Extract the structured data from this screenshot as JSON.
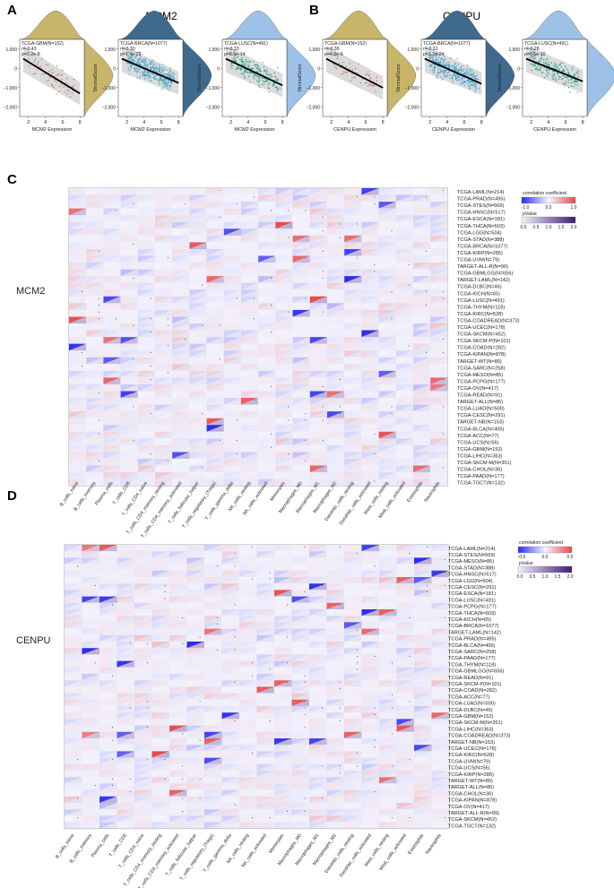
{
  "panel_letters": {
    "A": "A",
    "B": "B",
    "C": "C",
    "D": "D"
  },
  "gene_titles": {
    "A": "MCM2",
    "B": "CENPU"
  },
  "axis": {
    "ylabel": "StromalScore"
  },
  "scatter_ticks": {
    "x": [
      "2",
      "4",
      "6",
      "8"
    ],
    "y": [
      "1,000",
      "0",
      "−1,000",
      "−2,000"
    ]
  },
  "chart_data": [
    {
      "type": "scatter",
      "panel": "A",
      "gene": "MCM2",
      "cohort": "TCGA-GBM(N=152)",
      "r": "r=-0.43",
      "p": "p=2.2e-8",
      "xlabel": "MCM2 Expression",
      "ylabel": "StromalScore",
      "color": "#c96a5a",
      "density_color": "#c8b56a",
      "slope": -0.43
    },
    {
      "type": "scatter",
      "panel": "A",
      "gene": "MCM2",
      "cohort": "TCGA-BRCA(N=1077)",
      "r": "r=-0.30",
      "p": "p=1.4e-23",
      "xlabel": "MCM2 Expression",
      "ylabel": "StromalScore",
      "color": "#4aa3c8",
      "density_color": "#3f6a8e",
      "slope": -0.3
    },
    {
      "type": "scatter",
      "panel": "A",
      "gene": "MCM2",
      "cohort": "TCGA-LUSC(N=491)",
      "r": "r=-0.33",
      "p": "p=8.6e-14",
      "xlabel": "MCM2 Expression",
      "ylabel": "StromalScore",
      "color": "#2e9a8a",
      "density_color": "#9ec1e8",
      "slope": -0.33
    },
    {
      "type": "scatter",
      "panel": "B",
      "gene": "CENPU",
      "cohort": "TCGA-GBM(N=152)",
      "r": "r=-0.36",
      "p": "p=4.9e-6",
      "xlabel": "CENPU Expression",
      "ylabel": "StromalScore",
      "color": "#c96a5a",
      "density_color": "#c8b56a",
      "slope": -0.36
    },
    {
      "type": "scatter",
      "panel": "B",
      "gene": "CENPU",
      "cohort": "TCGA-BRCA(N=1077)",
      "r": "r=-0.31",
      "p": "p=1.2e-24",
      "xlabel": "CENPU Expression",
      "ylabel": "StromalScore",
      "color": "#4aa3c8",
      "density_color": "#3f6a8e",
      "slope": -0.31
    },
    {
      "type": "scatter",
      "panel": "B",
      "gene": "CENPU",
      "cohort": "TCGA-LUSC(N=491)",
      "r": "r=-0.28",
      "p": "p=6.5e-10",
      "xlabel": "CENPU Expression",
      "ylabel": "StromalScore",
      "color": "#2e9a8a",
      "density_color": "#9ec1e8",
      "slope": -0.28
    },
    {
      "type": "heatmap",
      "panel": "C",
      "gene": "MCM2",
      "columns": [
        "B_cells_naive",
        "B_cells_memory",
        "Plasma_cells",
        "T_cells_CD8",
        "T_cells_CD4_naive",
        "T_cells_CD4_memory_resting",
        "T_cells_CD4_memory_activated",
        "T_cells_follicular_helper",
        "T_cells_regulatory_(Tregs)",
        "T_cells_gamma_delta",
        "NK_cells_resting",
        "NK_cells_activated",
        "Monocytes",
        "Macrophages_M0",
        "Macrophages_M1",
        "Macrophages_M2",
        "Dendritic_cells_resting",
        "Dendritic_cells_activated",
        "Mast_cells_resting",
        "Mast_cells_activated",
        "Eosinophils",
        "Neutrophils"
      ],
      "rows": [
        "TCGA-LAML(N=214)",
        "TCGA-PRAD(N=495)",
        "TCGA-STES(N=569)",
        "TCGA-HNSC(N=517)",
        "TCGA-ESCA(N=181)",
        "TCGA-THCA(N=503)",
        "TCGA-LGG(N=504)",
        "TCGA-STAD(N=388)",
        "TCGA-BRCA(N=1077)",
        "TCGA-KIRP(N=285)",
        "TCGA-UVM(N=79)",
        "TARGET-ALL-R(N=99)",
        "TCGA-GBMLGG(N=656)",
        "TARGET-LAML(N=142)",
        "TCGA-DLBC(N=46)",
        "TCGA-KICH(N=65)",
        "TCGA-LUSC(N=491)",
        "TCGA-THYM(N=118)",
        "TCGA-KIRC(N=528)",
        "TCGA-COADREAD(N=373)",
        "TCGA-UCEC(N=178)",
        "TCGA-SKCM(N=452)",
        "TCGA-SKCM-P(N=101)",
        "TCGA-COAD(N=282)",
        "TCGA-KIPAN(N=878)",
        "TARGET-WT(N=80)",
        "TCGA-SARC(N=258)",
        "TCGA-MESO(N=85)",
        "TCGA-PCPG(N=177)",
        "TCGA-OV(N=417)",
        "TCGA-READ(N=91)",
        "TARGET-ALL(N=86)",
        "TCGA-LUAD(N=500)",
        "TCGA-CESC(N=291)",
        "TARGET-NB(N=153)",
        "TCGA-BLCA(N=405)",
        "TCGA-ACC(N=77)",
        "TCGA-UCS(N=56)",
        "TCGA-GBM(N=152)",
        "TCGA-LIHC(N=363)",
        "TCGA-SKCM-M(N=351)",
        "TCGA-CHOL(N=36)",
        "TCGA-PAAD(N=177)",
        "TCGA-TGCT(N=132)"
      ],
      "legend": {
        "cc_title": "correlation coefficient",
        "cc_ticks": [
          "-1.0",
          "0.0",
          "1.0"
        ],
        "p_title": "pValue",
        "p_ticks": [
          "0.0",
          "0.5",
          "1.0",
          "1.5",
          "2.0"
        ]
      },
      "value_range": [
        -1.0,
        1.0
      ]
    },
    {
      "type": "heatmap",
      "panel": "D",
      "gene": "CENPU",
      "columns": [
        "B_cells_naive",
        "B_cells_memory",
        "Plasma_cells",
        "T_cells_CD8",
        "T_cells_CD4_naive",
        "T_cells_CD4_memory_resting",
        "T_cells_CD4_memory_activated",
        "T_cells_follicular_helper",
        "T_cells_regulatory_(Tregs)",
        "T_cells_gamma_delta",
        "NK_cells_resting",
        "NK_cells_activated",
        "Monocytes",
        "Macrophages_M0",
        "Macrophages_M1",
        "Macrophages_M2",
        "Dendritic_cells_resting",
        "Dendritic_cells_activated",
        "Mast_cells_resting",
        "Mast_cells_activated",
        "Eosinophils",
        "Neutrophils"
      ],
      "rows": [
        "TCGA-LAML(N=214)",
        "TCGA-STES(N=569)",
        "TCGA-MESO(N=85)",
        "TCGA-STAD(N=388)",
        "TCGA-HNSC(N=517)",
        "TCGA-LGG(N=504)",
        "TCGA-CESC(N=291)",
        "TCGA-ESCA(N=181)",
        "TCGA-LUSC(N=491)",
        "TCGA-PCPG(N=177)",
        "TCGA-THCA(N=503)",
        "TCGA-KICH(N=65)",
        "TCGA-BRCA(N=1077)",
        "TARGET-LAML(N=142)",
        "TCGA-PRAD(N=495)",
        "TCGA-BLCA(N=405)",
        "TCGA-SARC(N=258)",
        "TCGA-PAAD(N=177)",
        "TCGA-THYM(N=118)",
        "TCGA-GBMLGG(N=656)",
        "TCGA-READ(N=91)",
        "TCGA-SKCM-P(N=101)",
        "TCGA-COAD(N=282)",
        "TCGA-ACC(N=77)",
        "TCGA-LUAD(N=500)",
        "TCGA-DLBC(N=46)",
        "TCGA-GBM(N=152)",
        "TCGA-SKCM-M(N=351)",
        "TCGA-LIHC(N=363)",
        "TCGA-COADREAD(N=373)",
        "TARGET-NB(N=153)",
        "TCGA-UCEC(N=178)",
        "TCGA-KIRC(N=528)",
        "TCGA-UVM(N=79)",
        "TCGA-UCS(N=56)",
        "TCGA-KIRP(N=285)",
        "TARGET-WT(N=80)",
        "TARGET-ALL(N=86)",
        "TCGA-CHOL(N=36)",
        "TCGA-KIPAN(N=878)",
        "TCGA-OV(N=417)",
        "TARGET-ALL-R(N=99)",
        "TCGA-SKCM(N=452)",
        "TCGA-TGCT(N=132)"
      ],
      "legend": {
        "cc_title": "correlation coefficient",
        "cc_ticks": [
          "-0.5",
          "0.0",
          "0.5"
        ],
        "p_title": "pValue",
        "p_ticks": [
          "0.0",
          "0.5",
          "1.0",
          "1.5",
          "2.0"
        ]
      },
      "value_range": [
        -0.5,
        0.5
      ]
    }
  ]
}
